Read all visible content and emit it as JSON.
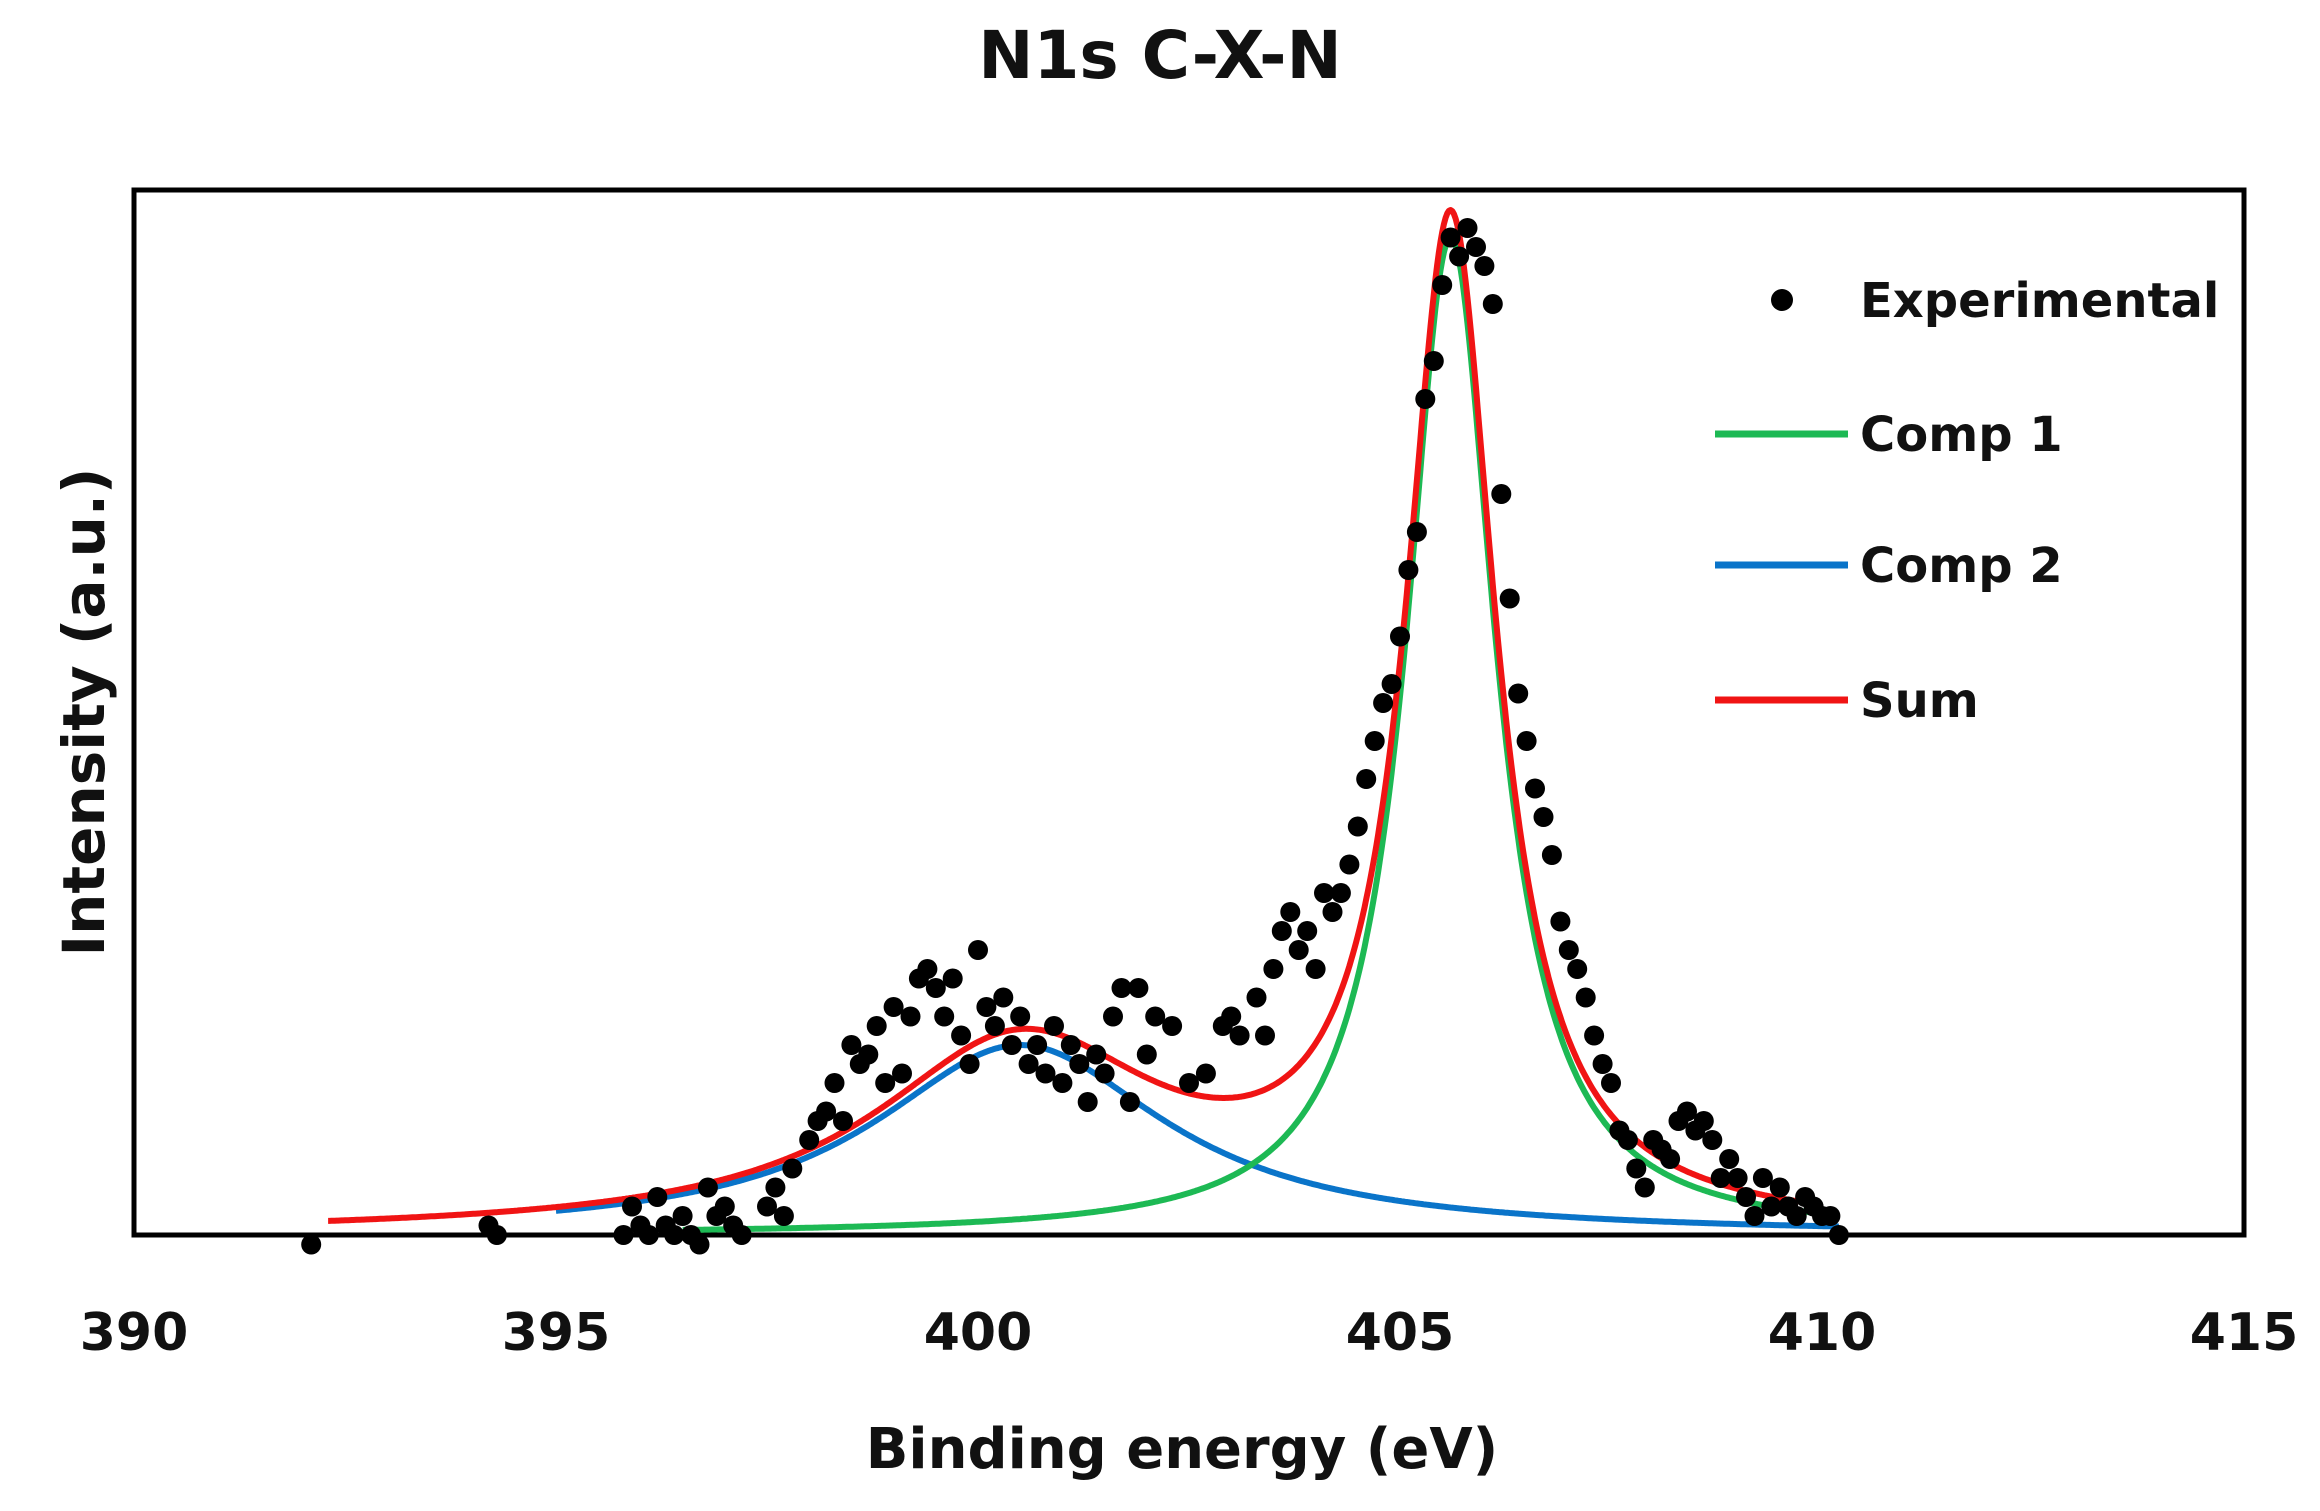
{
  "chart_data": {
    "type": "scatter",
    "title": "N1s C-X-N",
    "xlabel": "Binding energy (eV)",
    "ylabel": "Intensity (a.u.)",
    "xlim": [
      390,
      415
    ],
    "ylim": [
      0,
      1.1
    ],
    "xticks": [
      "390",
      "395",
      "400",
      "405",
      "410",
      "415"
    ],
    "y_tick_labels": false,
    "grid": false,
    "legend_position": "top-right",
    "legend": [
      {
        "label": "Experimental",
        "kind": "marker",
        "color": "#000000"
      },
      {
        "label": "Comp 1",
        "kind": "line",
        "color": "#1db954"
      },
      {
        "label": "Comp 2",
        "kind": "line",
        "color": "#0a74c9"
      },
      {
        "label": "Sum",
        "kind": "line",
        "color": "#f01414"
      }
    ],
    "series": [
      {
        "name": "Experimental",
        "color": "#000000",
        "points": [
          [
            392.1,
            -0.01
          ],
          [
            394.2,
            0.01
          ],
          [
            394.3,
            0.0
          ],
          [
            395.8,
            0.0
          ],
          [
            395.9,
            0.03
          ],
          [
            396.0,
            0.01
          ],
          [
            396.1,
            0.0
          ],
          [
            396.2,
            0.04
          ],
          [
            396.3,
            0.01
          ],
          [
            396.4,
            0.0
          ],
          [
            396.5,
            0.02
          ],
          [
            396.6,
            0.0
          ],
          [
            396.7,
            -0.01
          ],
          [
            396.8,
            0.05
          ],
          [
            396.9,
            0.02
          ],
          [
            397.0,
            0.03
          ],
          [
            397.1,
            0.01
          ],
          [
            397.2,
            0.0
          ],
          [
            397.5,
            0.03
          ],
          [
            397.6,
            0.05
          ],
          [
            397.7,
            0.02
          ],
          [
            397.8,
            0.07
          ],
          [
            398.0,
            0.1
          ],
          [
            398.1,
            0.12
          ],
          [
            398.2,
            0.13
          ],
          [
            398.3,
            0.16
          ],
          [
            398.4,
            0.12
          ],
          [
            398.5,
            0.2
          ],
          [
            398.6,
            0.18
          ],
          [
            398.7,
            0.19
          ],
          [
            398.8,
            0.22
          ],
          [
            398.9,
            0.16
          ],
          [
            399.0,
            0.24
          ],
          [
            399.1,
            0.17
          ],
          [
            399.2,
            0.23
          ],
          [
            399.3,
            0.27
          ],
          [
            399.4,
            0.28
          ],
          [
            399.5,
            0.26
          ],
          [
            399.6,
            0.23
          ],
          [
            399.7,
            0.27
          ],
          [
            399.8,
            0.21
          ],
          [
            399.9,
            0.18
          ],
          [
            400.0,
            0.3
          ],
          [
            400.1,
            0.24
          ],
          [
            400.2,
            0.22
          ],
          [
            400.3,
            0.25
          ],
          [
            400.4,
            0.2
          ],
          [
            400.5,
            0.23
          ],
          [
            400.6,
            0.18
          ],
          [
            400.7,
            0.2
          ],
          [
            400.8,
            0.17
          ],
          [
            400.9,
            0.22
          ],
          [
            401.0,
            0.16
          ],
          [
            401.1,
            0.2
          ],
          [
            401.2,
            0.18
          ],
          [
            401.3,
            0.14
          ],
          [
            401.4,
            0.19
          ],
          [
            401.5,
            0.17
          ],
          [
            401.6,
            0.23
          ],
          [
            401.7,
            0.26
          ],
          [
            401.8,
            0.14
          ],
          [
            401.9,
            0.26
          ],
          [
            402.0,
            0.19
          ],
          [
            402.1,
            0.23
          ],
          [
            402.3,
            0.22
          ],
          [
            402.5,
            0.16
          ],
          [
            402.7,
            0.17
          ],
          [
            402.9,
            0.22
          ],
          [
            403.0,
            0.23
          ],
          [
            403.1,
            0.21
          ],
          [
            403.3,
            0.25
          ],
          [
            403.4,
            0.21
          ],
          [
            403.5,
            0.28
          ],
          [
            403.6,
            0.32
          ],
          [
            403.7,
            0.34
          ],
          [
            403.8,
            0.3
          ],
          [
            403.9,
            0.32
          ],
          [
            404.0,
            0.28
          ],
          [
            404.1,
            0.36
          ],
          [
            404.2,
            0.34
          ],
          [
            404.3,
            0.36
          ],
          [
            404.4,
            0.39
          ],
          [
            404.5,
            0.43
          ],
          [
            404.6,
            0.48
          ],
          [
            404.7,
            0.52
          ],
          [
            404.8,
            0.56
          ],
          [
            404.9,
            0.58
          ],
          [
            405.0,
            0.63
          ],
          [
            405.1,
            0.7
          ],
          [
            405.2,
            0.74
          ],
          [
            405.3,
            0.88
          ],
          [
            405.4,
            0.92
          ],
          [
            405.5,
            1.0
          ],
          [
            405.6,
            1.05
          ],
          [
            405.7,
            1.03
          ],
          [
            405.8,
            1.06
          ],
          [
            405.9,
            1.04
          ],
          [
            406.0,
            1.02
          ],
          [
            406.1,
            0.98
          ],
          [
            406.2,
            0.78
          ],
          [
            406.3,
            0.67
          ],
          [
            406.4,
            0.57
          ],
          [
            406.5,
            0.52
          ],
          [
            406.6,
            0.47
          ],
          [
            406.7,
            0.44
          ],
          [
            406.8,
            0.4
          ],
          [
            406.9,
            0.33
          ],
          [
            407.0,
            0.3
          ],
          [
            407.1,
            0.28
          ],
          [
            407.2,
            0.25
          ],
          [
            407.3,
            0.21
          ],
          [
            407.4,
            0.18
          ],
          [
            407.5,
            0.16
          ],
          [
            407.6,
            0.11
          ],
          [
            407.7,
            0.1
          ],
          [
            407.8,
            0.07
          ],
          [
            407.9,
            0.05
          ],
          [
            408.0,
            0.1
          ],
          [
            408.1,
            0.09
          ],
          [
            408.2,
            0.08
          ],
          [
            408.3,
            0.12
          ],
          [
            408.4,
            0.13
          ],
          [
            408.5,
            0.11
          ],
          [
            408.6,
            0.12
          ],
          [
            408.7,
            0.1
          ],
          [
            408.8,
            0.06
          ],
          [
            408.9,
            0.08
          ],
          [
            409.0,
            0.06
          ],
          [
            409.1,
            0.04
          ],
          [
            409.2,
            0.02
          ],
          [
            409.3,
            0.06
          ],
          [
            409.4,
            0.03
          ],
          [
            409.5,
            0.05
          ],
          [
            409.6,
            0.03
          ],
          [
            409.7,
            0.02
          ],
          [
            409.8,
            0.04
          ],
          [
            409.9,
            0.03
          ],
          [
            410.0,
            0.02
          ],
          [
            410.1,
            0.02
          ],
          [
            410.2,
            0.0
          ]
        ]
      },
      {
        "name": "Comp 1",
        "color": "#1db954",
        "center": 405.6,
        "fwhm": 1.3,
        "height": 1.05,
        "x_range": [
          396.5,
          410.2
        ]
      },
      {
        "name": "Comp 2",
        "color": "#0a74c9",
        "center": 400.5,
        "fwhm": 4.2,
        "height": 0.2,
        "x_range": [
          395.0,
          410.2
        ]
      },
      {
        "name": "Sum",
        "color": "#f01414",
        "x_range": [
          392.3,
          409.9
        ]
      }
    ]
  }
}
